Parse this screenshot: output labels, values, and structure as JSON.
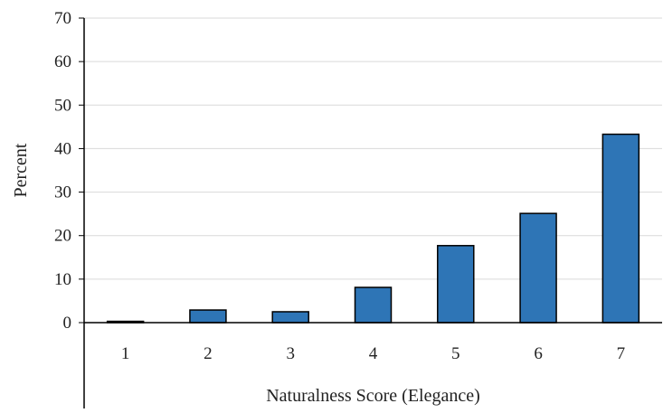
{
  "chart_data": {
    "type": "bar",
    "title": "",
    "xlabel": "Naturalness Score (Elegance)",
    "ylabel": "Percent",
    "categories": [
      "1",
      "2",
      "3",
      "4",
      "5",
      "6",
      "7"
    ],
    "values": [
      0.3,
      2.9,
      2.5,
      8.1,
      17.7,
      25.1,
      43.3
    ],
    "ylim": [
      0,
      70
    ],
    "yticks": [
      "0",
      "10",
      "20",
      "30",
      "40",
      "50",
      "60",
      "70"
    ],
    "grid": true,
    "legend": "none",
    "colors": {
      "bar_fill": "#2e75b6",
      "bar_stroke": "#000000",
      "grid": "#d9d9d9",
      "axis": "#000000"
    }
  }
}
